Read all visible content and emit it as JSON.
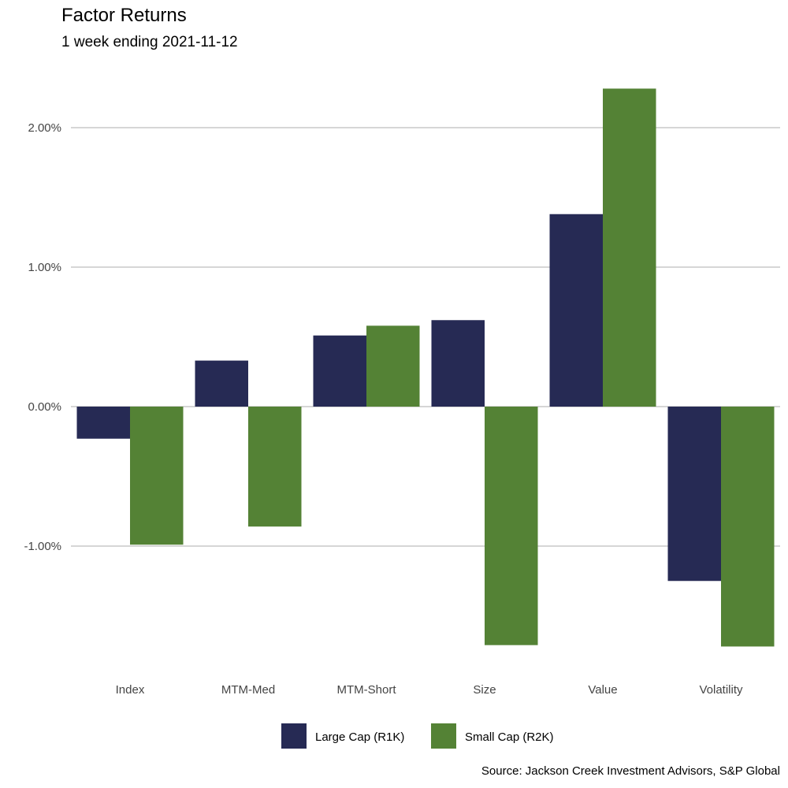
{
  "chart_data": {
    "type": "bar",
    "title": "Factor Returns",
    "subtitle": "1 week ending 2021-11-12",
    "caption": "Source: Jackson Creek Investment Advisors, S&P Global",
    "xlabel": "",
    "ylabel": "",
    "categories": [
      "Index",
      "MTM-Med",
      "MTM-Short",
      "Size",
      "Value",
      "Volatility"
    ],
    "series": [
      {
        "name": "Large Cap (R1K)",
        "color": "#262A54",
        "values": [
          -0.23,
          0.33,
          0.51,
          0.62,
          1.38,
          -1.25
        ]
      },
      {
        "name": "Small Cap (R2K)",
        "color": "#548235",
        "values": [
          -0.99,
          -0.86,
          0.58,
          -1.71,
          2.28,
          -1.72
        ]
      }
    ],
    "y_unit": "%",
    "yticks": [
      -1,
      0,
      1,
      2
    ],
    "ytick_labels": [
      "-1.00%",
      "0.00%",
      "1.00%",
      "2.00%"
    ],
    "ylim": [
      -1.85,
      2.55
    ],
    "grid": "horizontal major",
    "legend_position": "bottom"
  }
}
